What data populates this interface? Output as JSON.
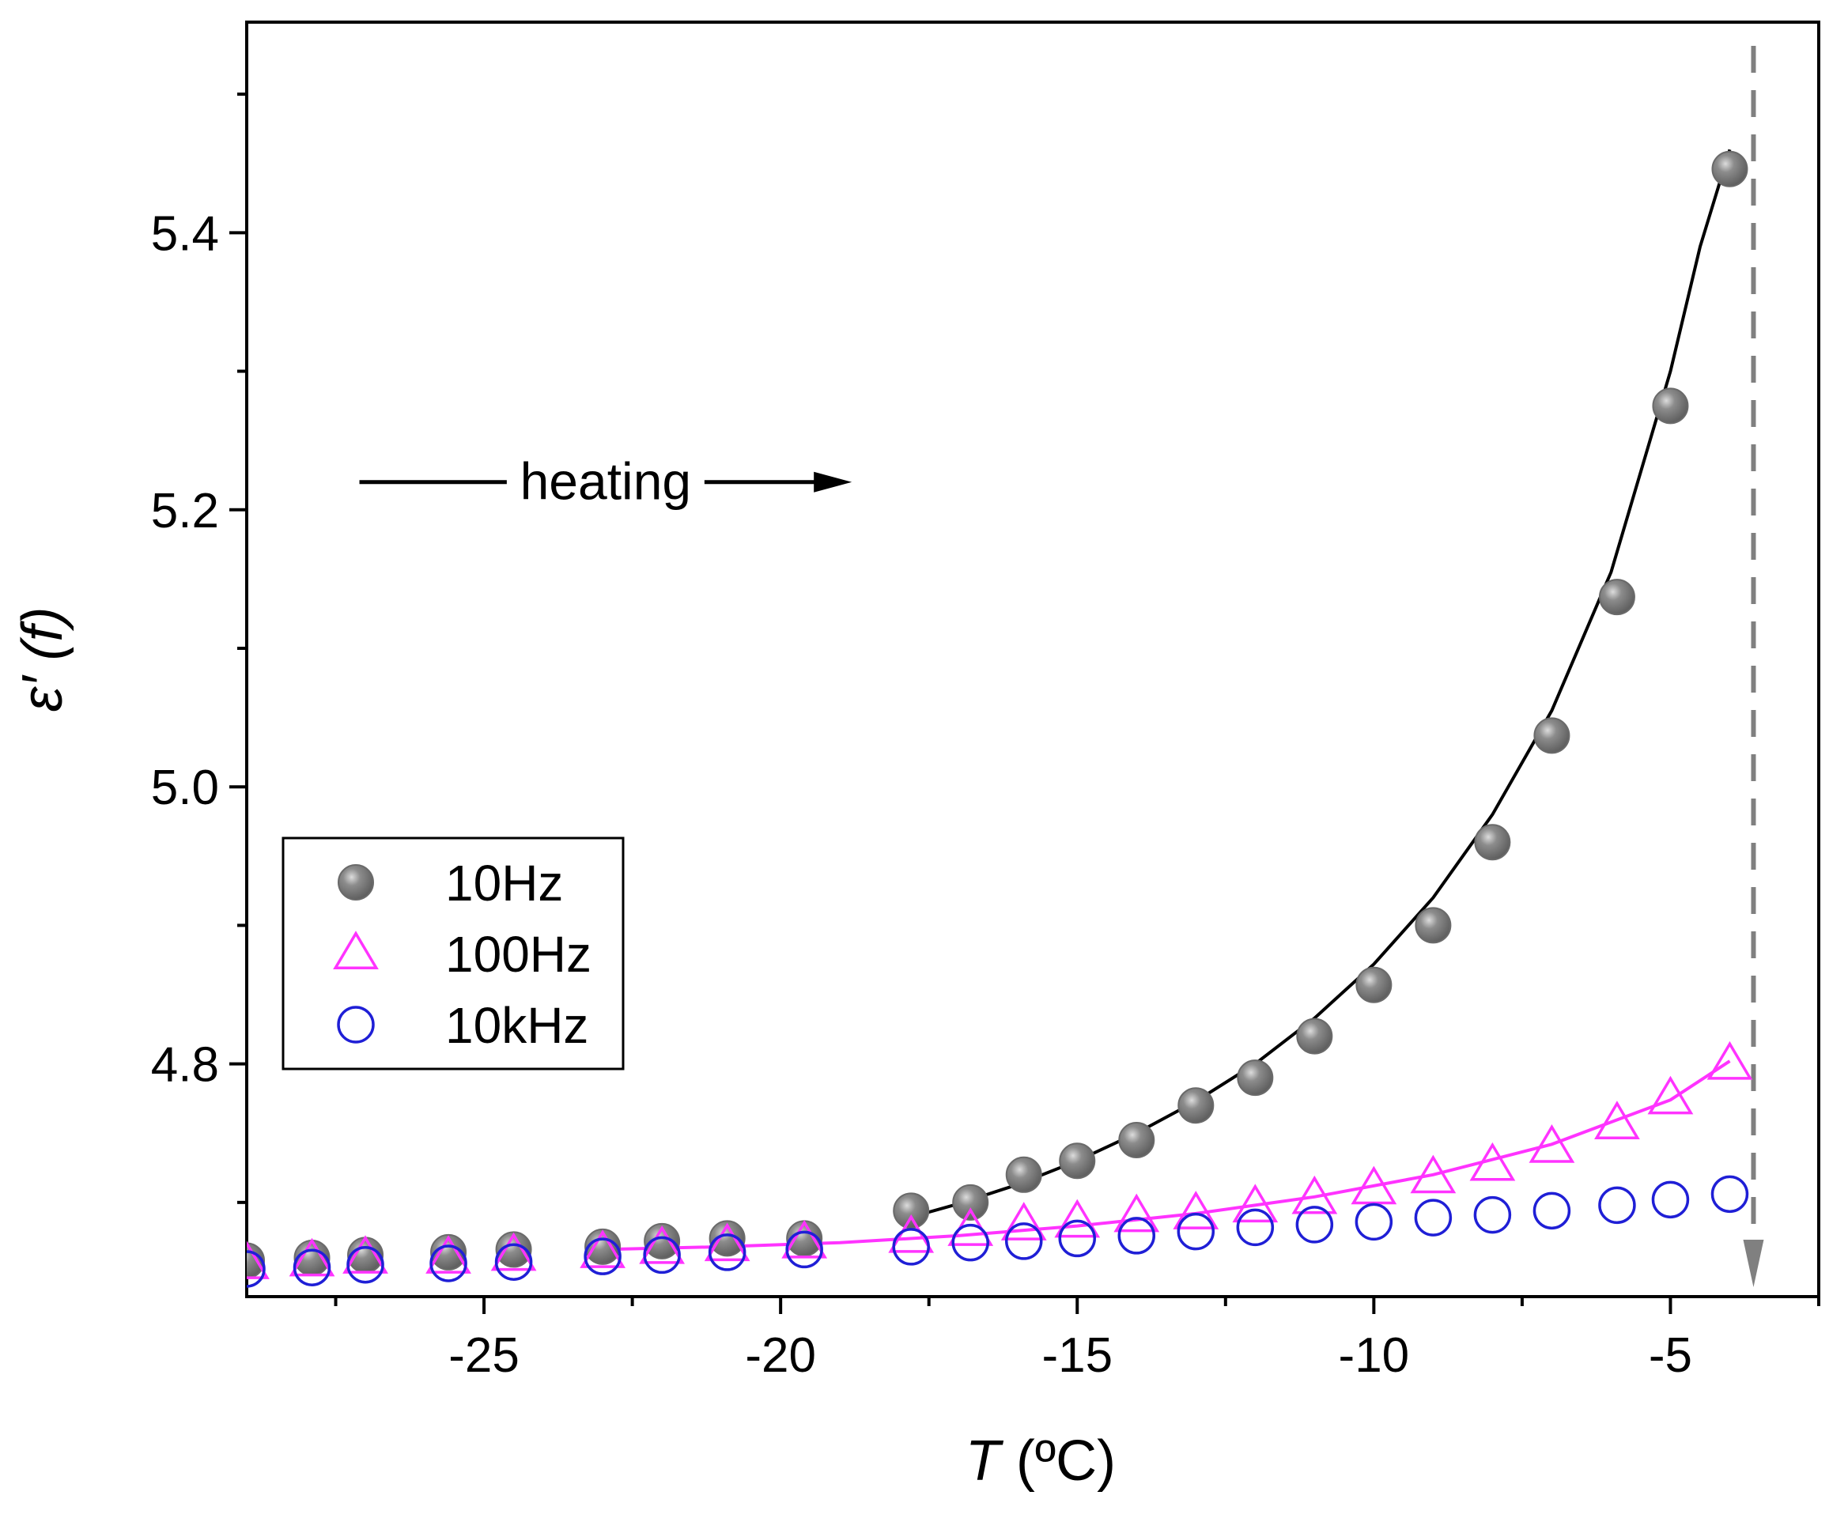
{
  "chart_data": {
    "type": "scatter",
    "xlabel_var": "T",
    "xlabel_unit": " (ºC)",
    "ylabel_var": "ε′",
    "ylabel_arg": " (f)",
    "xlim": [
      -29,
      -2.5
    ],
    "ylim": [
      4.632,
      5.552
    ],
    "x_ticks": [
      -25,
      -20,
      -15,
      -10,
      -5
    ],
    "x_tick_labels": [
      "-25",
      "-20",
      "-15",
      "-10",
      "-5"
    ],
    "y_ticks": [
      4.8,
      5.0,
      5.2,
      5.4
    ],
    "y_tick_labels": [
      "4.8",
      "5.0",
      "5.2",
      "5.4"
    ],
    "x_minor_ticks": [
      -27.5,
      -22.5,
      -17.5,
      -12.5,
      -7.5,
      -2.5
    ],
    "y_minor_ticks": [
      4.7,
      4.9,
      5.1,
      5.3,
      5.5
    ],
    "series": [
      {
        "name": "10Hz",
        "marker": "filled-circle",
        "color": "#7f7f7f",
        "x": [
          -29,
          -27.9,
          -27,
          -25.6,
          -24.5,
          -23,
          -22,
          -20.9,
          -19.6,
          -17.8,
          -16.8,
          -15.9,
          -15,
          -14,
          -13,
          -12,
          -11,
          -10,
          -9,
          -8,
          -7,
          -5.9,
          -5,
          -4
        ],
        "y": [
          4.658,
          4.66,
          4.662,
          4.664,
          4.666,
          4.668,
          4.672,
          4.674,
          4.674,
          4.694,
          4.7,
          4.72,
          4.73,
          4.745,
          4.77,
          4.79,
          4.82,
          4.857,
          4.9,
          4.96,
          5.037,
          5.137,
          5.275,
          5.446
        ]
      },
      {
        "name": "100Hz",
        "marker": "open-triangle",
        "color": "#ff33ff",
        "x": [
          -29,
          -27.9,
          -27,
          -25.6,
          -24.5,
          -23,
          -22,
          -20.9,
          -19.6,
          -17.8,
          -16.8,
          -15.9,
          -15,
          -14,
          -13,
          -12,
          -11,
          -10,
          -9,
          -8,
          -7,
          -5.9,
          -5,
          -4
        ],
        "y": [
          4.656,
          4.658,
          4.66,
          4.66,
          4.662,
          4.664,
          4.667,
          4.669,
          4.671,
          4.675,
          4.68,
          4.684,
          4.686,
          4.69,
          4.692,
          4.697,
          4.703,
          4.71,
          4.718,
          4.727,
          4.74,
          4.757,
          4.775,
          4.8
        ]
      },
      {
        "name": "10kHz",
        "marker": "open-circle",
        "color": "#1f1fd6",
        "x": [
          -29,
          -27.9,
          -27,
          -25.6,
          -24.5,
          -23,
          -22,
          -20.9,
          -19.6,
          -17.8,
          -16.8,
          -15.9,
          -15,
          -14,
          -13,
          -12,
          -11,
          -10,
          -9,
          -8,
          -7,
          -5.9,
          -5,
          -4
        ],
        "y": [
          4.652,
          4.653,
          4.655,
          4.656,
          4.657,
          4.661,
          4.662,
          4.664,
          4.666,
          4.668,
          4.671,
          4.672,
          4.674,
          4.676,
          4.679,
          4.682,
          4.684,
          4.686,
          4.689,
          4.691,
          4.694,
          4.698,
          4.702,
          4.706
        ]
      }
    ],
    "fits": [
      {
        "series": "10Hz",
        "color": "#000000",
        "x": [
          -18,
          -17,
          -16,
          -15,
          -14,
          -13,
          -12,
          -11,
          -10,
          -9,
          -8,
          -7,
          -6,
          -5,
          -4.5,
          -4
        ],
        "y": [
          4.687,
          4.699,
          4.713,
          4.73,
          4.75,
          4.773,
          4.8,
          4.833,
          4.872,
          4.92,
          4.98,
          5.055,
          5.155,
          5.3,
          5.39,
          5.46
        ]
      },
      {
        "series": "100Hz",
        "color": "#ff33ff",
        "x": [
          -23,
          -21,
          -19,
          -17,
          -15,
          -13,
          -11,
          -9,
          -7,
          -5,
          -4
        ],
        "y": [
          4.666,
          4.668,
          4.671,
          4.676,
          4.683,
          4.692,
          4.704,
          4.72,
          4.742,
          4.774,
          4.802
        ]
      }
    ],
    "annotations": {
      "heating_label": "heating",
      "heating_arrow": {
        "x_start": -27.1,
        "x_end": -18.8,
        "y": 5.22
      },
      "transition_line": {
        "x": -3.6,
        "color": "#808080"
      }
    },
    "legend_position": "lower-left"
  }
}
